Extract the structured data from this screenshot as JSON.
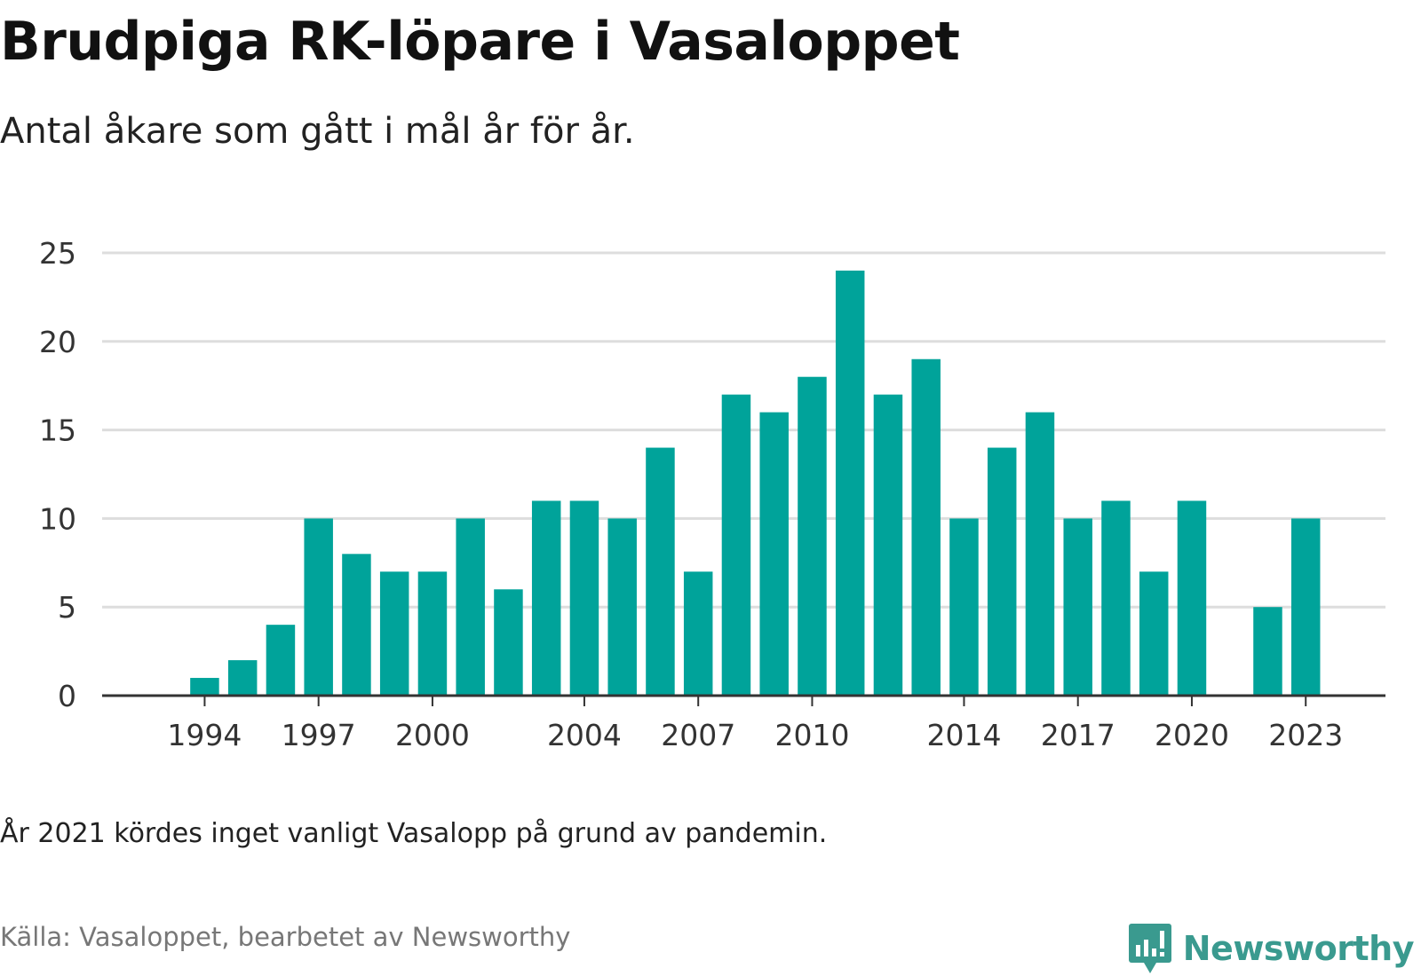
{
  "header": {
    "title": "Brudpiga RK-löpare i Vasaloppet",
    "subtitle": "Antal åkare som gått i mål år för år."
  },
  "footnote": "År 2021 kördes inget vanligt Vasalopp på grund av pandemin.",
  "source": "Källa: Vasaloppet, bearbetet av Newsworthy",
  "brand": {
    "name": "Newsworthy",
    "icon": "newsworthy-logo-icon",
    "color": "#3a9a8f"
  },
  "colors": {
    "bar": "#00a39a",
    "grid": "#dddddd",
    "axis": "#333333",
    "tick_label": "#333333"
  },
  "chart_data": {
    "type": "bar",
    "title": "Brudpiga RK-löpare i Vasaloppet",
    "subtitle": "Antal åkare som gått i mål år för år.",
    "xlabel": "",
    "ylabel": "",
    "x": [
      1994,
      1995,
      1996,
      1997,
      1998,
      1999,
      2000,
      2001,
      2002,
      2003,
      2004,
      2005,
      2006,
      2007,
      2008,
      2009,
      2010,
      2011,
      2012,
      2013,
      2014,
      2015,
      2016,
      2017,
      2018,
      2019,
      2020,
      2021,
      2022,
      2023
    ],
    "values": [
      1,
      2,
      4,
      10,
      8,
      7,
      7,
      10,
      6,
      11,
      11,
      10,
      14,
      7,
      17,
      16,
      18,
      24,
      17,
      19,
      10,
      14,
      16,
      10,
      11,
      7,
      11,
      null,
      5,
      10
    ],
    "xlim": [
      1991.3,
      2025.1
    ],
    "ylim": [
      0,
      25
    ],
    "yticks": [
      0,
      5,
      10,
      15,
      20,
      25
    ],
    "xticks": [
      1994,
      1997,
      2000,
      2004,
      2007,
      2010,
      2014,
      2017,
      2020,
      2023
    ],
    "grid": "horizontal",
    "legend": "none"
  }
}
